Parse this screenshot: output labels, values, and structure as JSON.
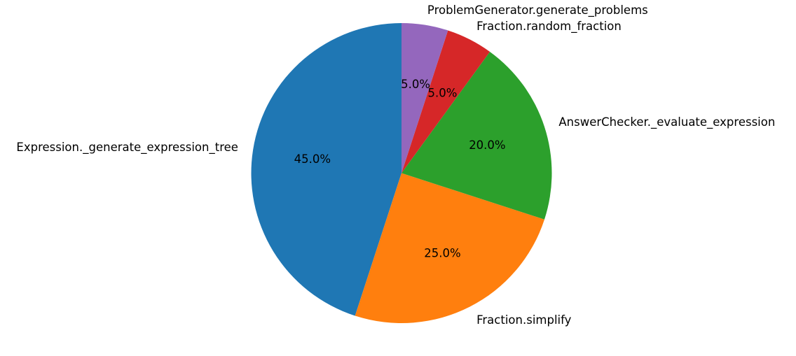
{
  "chart_data": {
    "type": "pie",
    "title": "",
    "categories": [
      "Expression._generate_expression_tree",
      "Fraction.simplify",
      "AnswerChecker._evaluate_expression",
      "Fraction.random_fraction",
      "ProblemGenerator.generate_problems"
    ],
    "values": [
      45.0,
      25.0,
      20.0,
      5.0,
      5.0
    ],
    "value_labels": [
      "45.0%",
      "25.0%",
      "20.0%",
      "5.0%",
      "5.0%"
    ],
    "colors": [
      "#1f77b4",
      "#ff7f0e",
      "#2ca02c",
      "#d62728",
      "#9467bd"
    ],
    "start_angle_deg": 90,
    "direction": "counterclockwise",
    "legend": "none"
  }
}
